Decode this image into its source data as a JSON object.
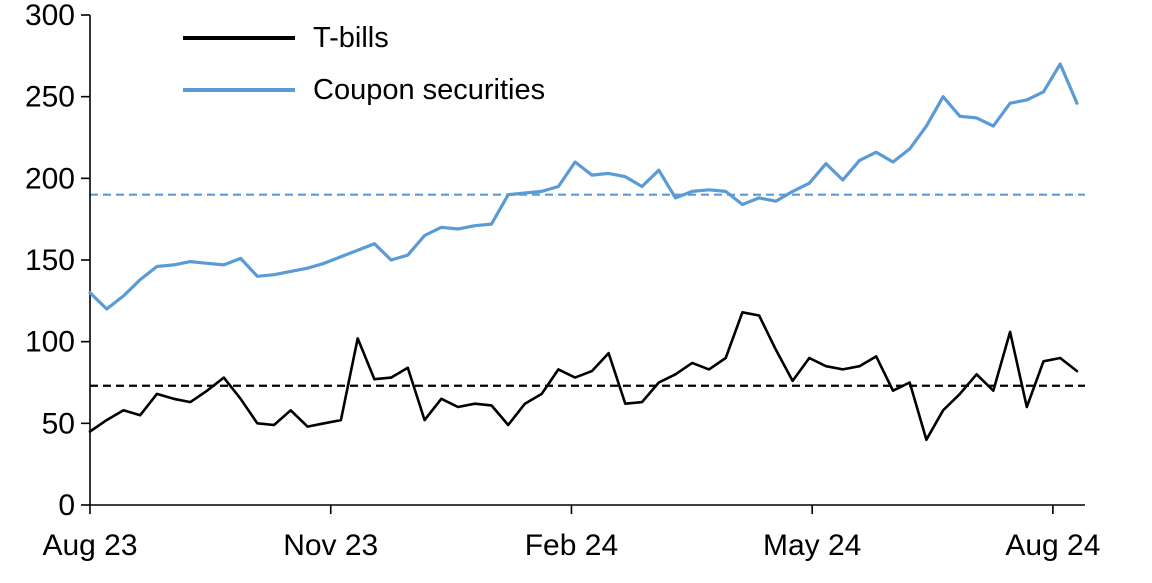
{
  "chart_data": {
    "type": "line",
    "title": "",
    "xlabel": "",
    "ylabel": "",
    "ylim": [
      0,
      300
    ],
    "y_ticks": [
      0,
      50,
      100,
      150,
      200,
      250,
      300
    ],
    "x_ticks": [
      {
        "label": "Aug 23",
        "month": 0
      },
      {
        "label": "Nov 23",
        "month": 3
      },
      {
        "label": "Feb 24",
        "month": 6
      },
      {
        "label": "May 24",
        "month": 9
      },
      {
        "label": "Aug 24",
        "month": 12
      }
    ],
    "x_axis_span_months": 12.4,
    "data_span_months": 12.3,
    "grid": false,
    "legend_position": "top-left",
    "series": [
      {
        "name": "T-bills",
        "color": "#000000",
        "width": 2.6,
        "values": [
          45,
          52,
          58,
          55,
          68,
          65,
          63,
          70,
          78,
          65,
          50,
          49,
          58,
          48,
          50,
          52,
          102,
          77,
          78,
          84,
          52,
          65,
          60,
          62,
          61,
          49,
          62,
          68,
          83,
          78,
          82,
          93,
          62,
          63,
          75,
          80,
          87,
          83,
          90,
          118,
          116,
          95,
          76,
          90,
          85,
          83,
          85,
          91,
          70,
          75,
          40,
          58,
          68,
          80,
          70,
          106,
          60,
          88,
          90,
          82
        ]
      },
      {
        "name": "Coupon securities",
        "color": "#5B9BD5",
        "width": 3.2,
        "values": [
          130,
          120,
          128,
          138,
          146,
          147,
          149,
          148,
          147,
          151,
          140,
          141,
          143,
          145,
          148,
          152,
          156,
          160,
          150,
          153,
          165,
          170,
          169,
          171,
          172,
          190,
          191,
          192,
          195,
          210,
          202,
          203,
          201,
          195,
          205,
          188,
          192,
          193,
          192,
          184,
          188,
          186,
          192,
          197,
          209,
          199,
          211,
          216,
          210,
          218,
          232,
          250,
          238,
          237,
          232,
          246,
          248,
          253,
          270,
          246
        ]
      }
    ],
    "reference_lines": [
      {
        "series": "T-bills",
        "value": 73,
        "color": "#000000",
        "style": "dashed"
      },
      {
        "series": "Coupon securities",
        "value": 190,
        "color": "#5B9BD5",
        "style": "dashed"
      }
    ]
  }
}
